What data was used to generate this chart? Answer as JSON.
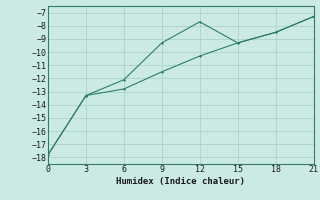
{
  "xlabel": "Humidex (Indice chaleur)",
  "background_color": "#cceae4",
  "line_color": "#2d7d6e",
  "grid_color": "#aad4cc",
  "xlim": [
    0,
    21
  ],
  "ylim": [
    -18.5,
    -6.5
  ],
  "xticks": [
    0,
    3,
    6,
    9,
    12,
    15,
    18,
    21
  ],
  "yticks": [
    -18,
    -17,
    -16,
    -15,
    -14,
    -13,
    -12,
    -11,
    -10,
    -9,
    -8,
    -7
  ],
  "line1_x": [
    0,
    3,
    6,
    9,
    12,
    15,
    18,
    21
  ],
  "line1_y": [
    -17.8,
    -13.3,
    -12.1,
    -9.3,
    -7.7,
    -9.3,
    -8.5,
    -7.3
  ],
  "line2_x": [
    0,
    3,
    6,
    9,
    12,
    15,
    18,
    21
  ],
  "line2_y": [
    -17.8,
    -13.3,
    -12.8,
    -11.5,
    -10.3,
    -9.3,
    -8.5,
    -7.3
  ]
}
